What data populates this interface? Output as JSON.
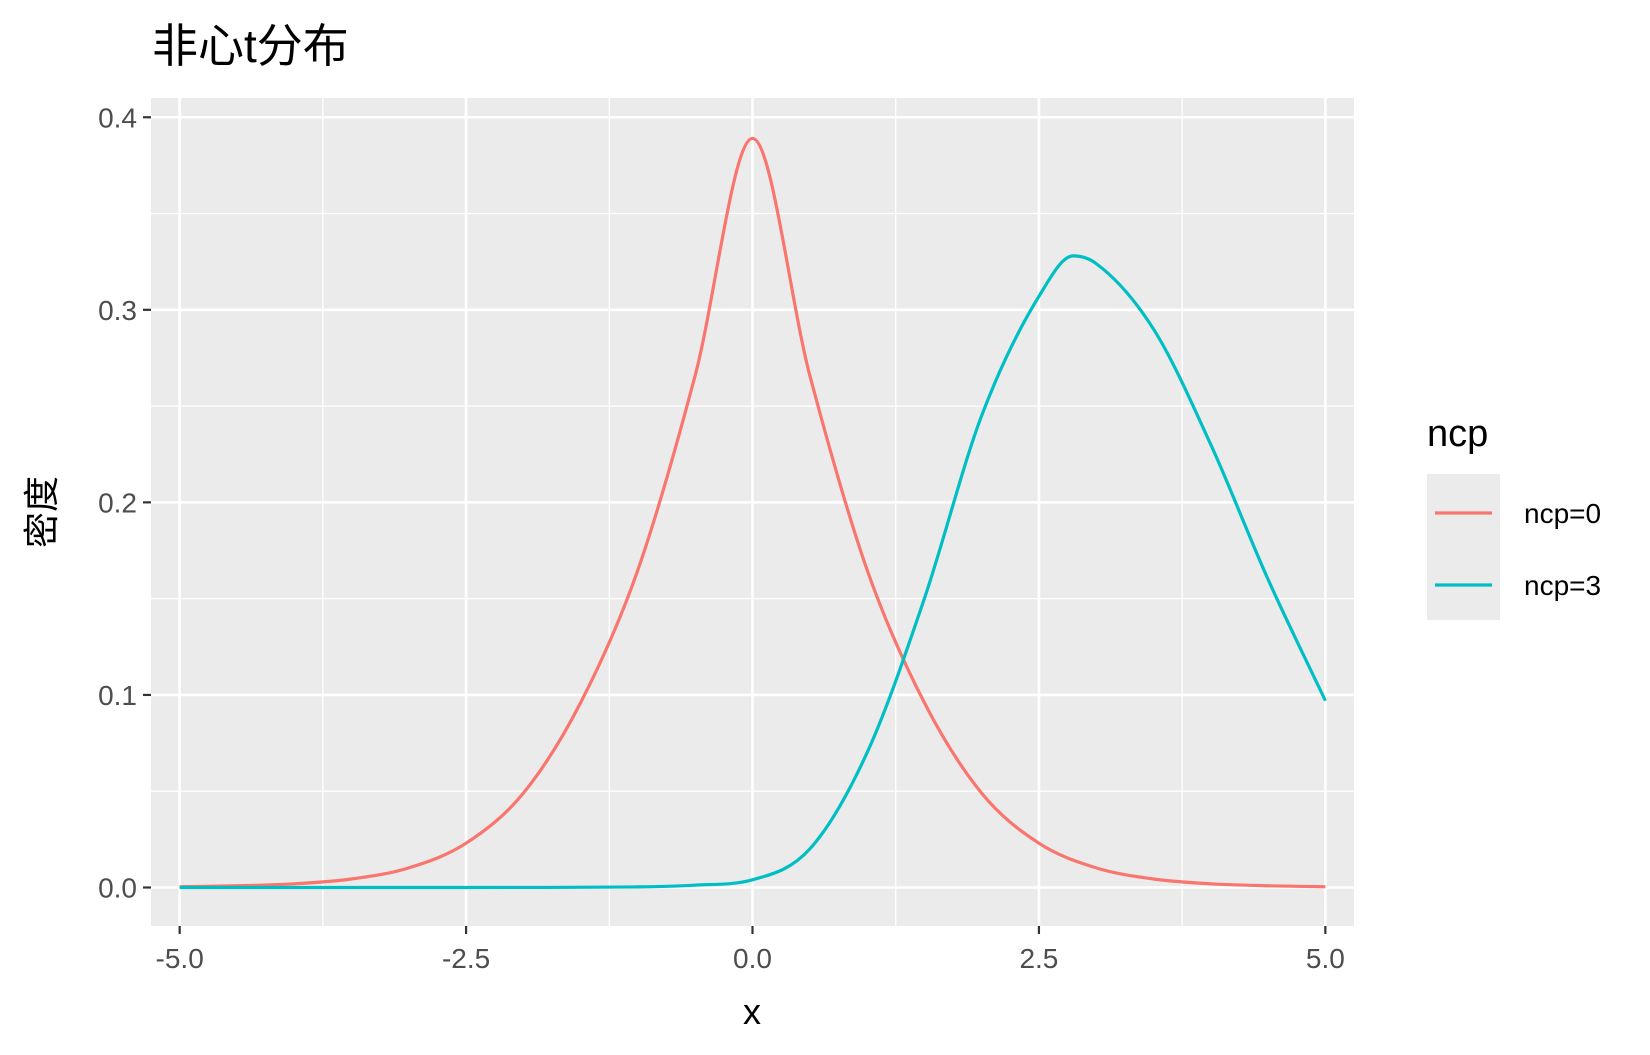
{
  "chart_data": {
    "type": "line",
    "title": "非心t分布",
    "xlabel": "x",
    "ylabel": "密度",
    "xlim": [
      -5.25,
      5.25
    ],
    "ylim": [
      -0.02,
      0.41
    ],
    "x_ticks": [
      -5.0,
      -2.5,
      0.0,
      2.5,
      5.0
    ],
    "x_tick_labels": [
      "-5.0",
      "-2.5",
      "0.0",
      "2.5",
      "5.0"
    ],
    "y_ticks": [
      0.0,
      0.1,
      0.2,
      0.3,
      0.4
    ],
    "y_tick_labels": [
      "0.0",
      "0.1",
      "0.2",
      "0.3",
      "0.4"
    ],
    "grid": true,
    "background": "#ebebeb",
    "legend": {
      "title": "ncp",
      "position": "right",
      "entries": [
        "ncp=0",
        "ncp=3"
      ]
    },
    "series": [
      {
        "name": "ncp=0",
        "color": "#F8766D",
        "x": [
          -5.0,
          -4.5,
          -4.0,
          -3.5,
          -3.0,
          -2.5,
          -2.0,
          -1.5,
          -1.0,
          -0.5,
          0.0,
          0.5,
          1.0,
          1.5,
          2.0,
          2.5,
          3.0,
          3.5,
          4.0,
          4.5,
          5.0
        ],
        "y": [
          0.0004,
          0.0009,
          0.0019,
          0.0044,
          0.0102,
          0.023,
          0.049,
          0.096,
          0.165,
          0.266,
          0.389,
          0.266,
          0.165,
          0.096,
          0.049,
          0.023,
          0.0102,
          0.0044,
          0.0019,
          0.0009,
          0.0004
        ]
      },
      {
        "name": "ncp=3",
        "color": "#00BFC4",
        "x": [
          -5.0,
          -2.5,
          -1.0,
          -0.5,
          0.0,
          0.5,
          1.0,
          1.5,
          2.0,
          2.5,
          2.8,
          3.0,
          3.5,
          4.0,
          4.5,
          5.0
        ],
        "y": [
          0.0,
          0.0,
          0.0003,
          0.0012,
          0.004,
          0.02,
          0.07,
          0.15,
          0.245,
          0.307,
          0.328,
          0.324,
          0.29,
          0.23,
          0.16,
          0.097
        ]
      }
    ]
  }
}
